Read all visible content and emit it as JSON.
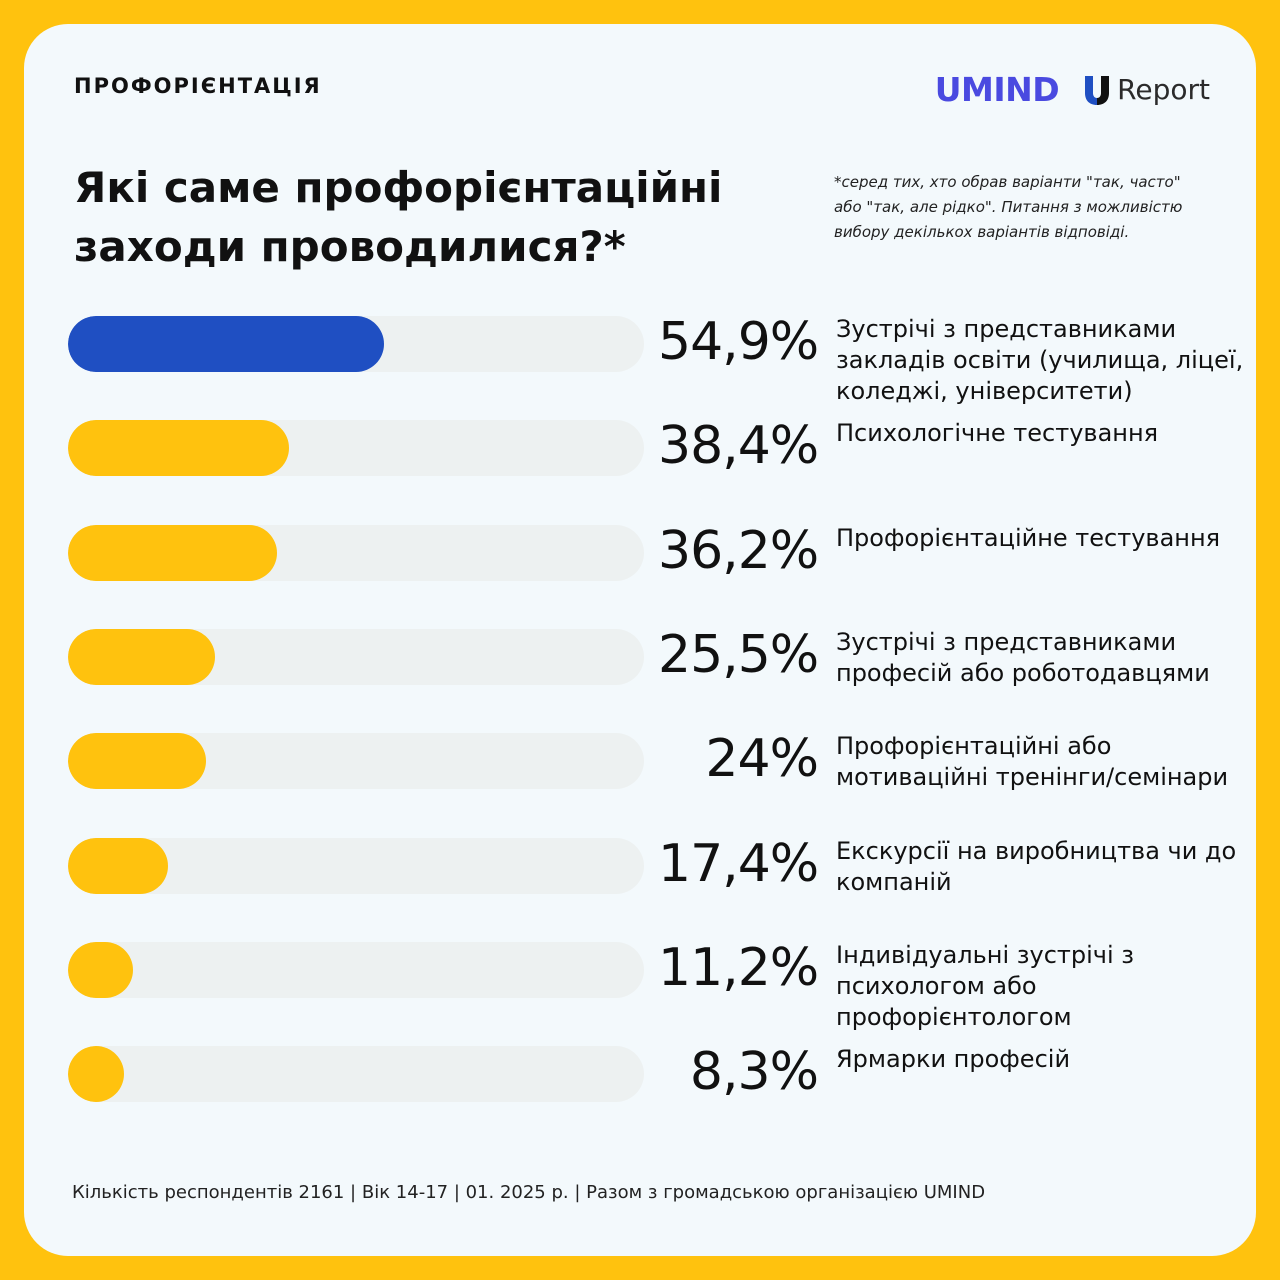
{
  "header": {
    "section_label": "ПРОФОРІЄНТАЦІЯ",
    "umind_logo_text": "UMIND",
    "ureport_logo_text": "Report"
  },
  "note": "*серед тих, хто обрав варіанти \"так, часто\" або \"так, але рідко\". Питання з можливістю вибору декількох варіантів відповіді.",
  "footer": "Кількість респондентів 2161 | Вік 14-17 | 01. 2025 р. | Разом з громадською організацією UMIND",
  "colors": {
    "primary_bar": "#1F4FC2",
    "secondary_bar": "#FFC20E",
    "track": "#EDF1F1",
    "umind_logo": "#4A4AE0"
  },
  "chart_data": {
    "type": "bar",
    "orientation": "horizontal",
    "title": "Які саме профорієнтаційні заходи проводилися?*",
    "categories": [
      "Зустрічі з представниками закладів освіти (училища, ліцеї, коледжі, університети)",
      "Психологічне тестування",
      "Профорієнтаційне тестування",
      "Зустрічі з представниками професій або роботодавцями",
      "Профорієнтаційні або мотиваційні тренінги/семінари",
      "Екскурсії на виробництва чи до компаній",
      "Індивідуальні зустрічі з психологом або профорієнтологом",
      "Ярмарки професій"
    ],
    "values": [
      54.9,
      38.4,
      36.2,
      25.5,
      24,
      17.4,
      11.2,
      8.3
    ],
    "value_labels": [
      "54,9%",
      "38,4%",
      "36,2%",
      "25,5%",
      "24%",
      "17,4%",
      "11,2%",
      "8,3%"
    ],
    "unit": "%",
    "xlim": [
      0,
      100
    ],
    "grid": false,
    "legend": "none"
  }
}
